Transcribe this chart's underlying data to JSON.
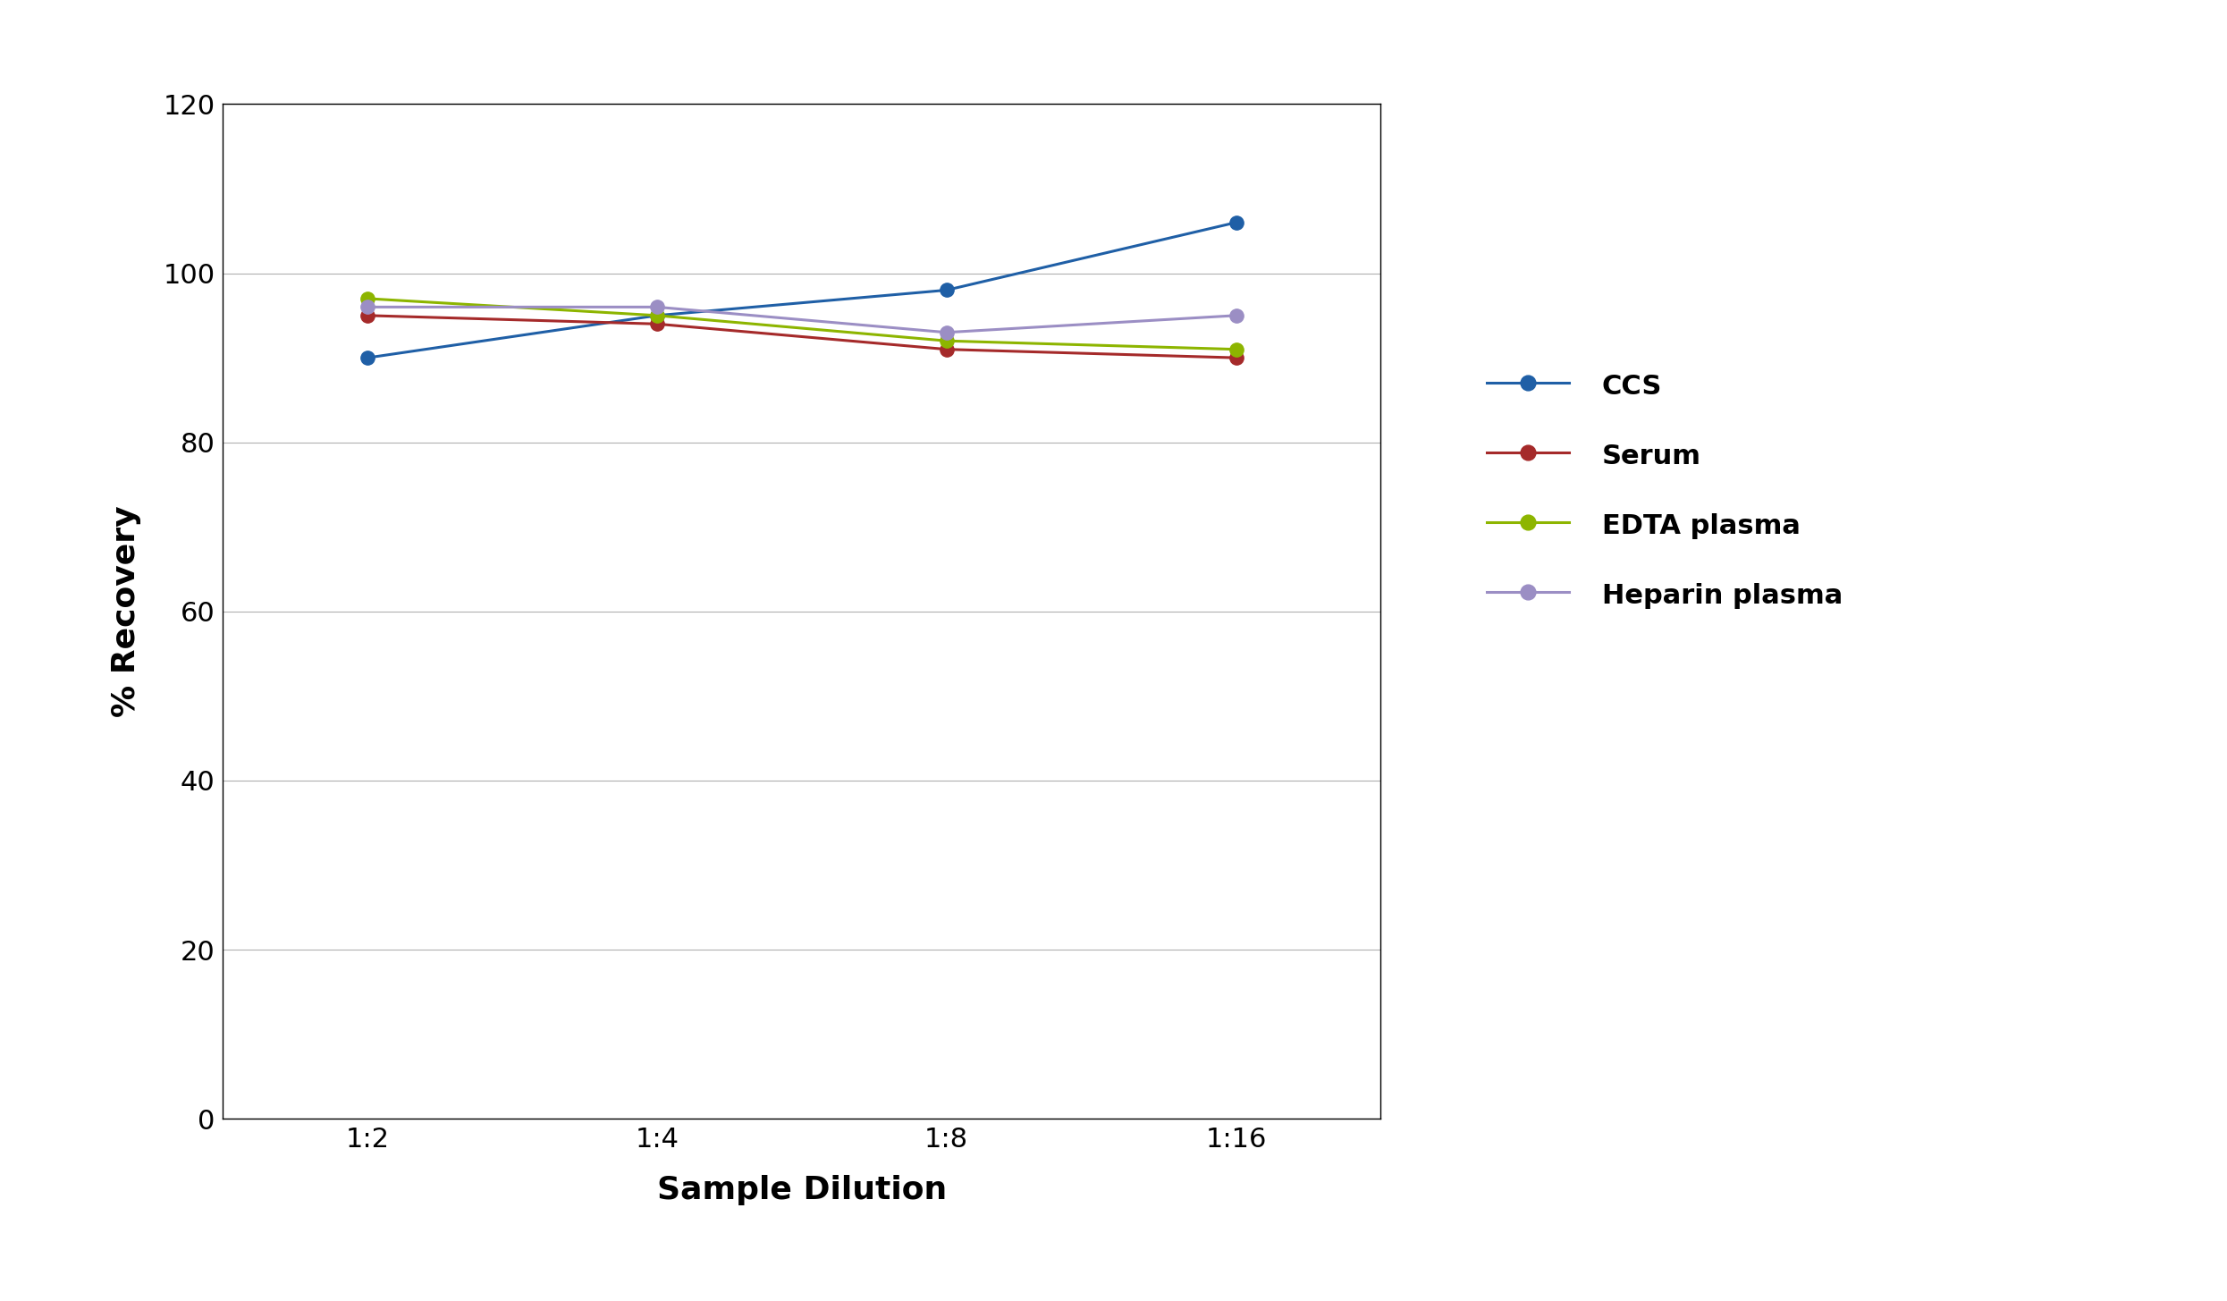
{
  "xlabel": "Sample Dilution",
  "ylabel": "% Recovery",
  "x_labels": [
    "1:2",
    "1:4",
    "1:8",
    "1:16"
  ],
  "x_values": [
    1,
    2,
    3,
    4
  ],
  "series": [
    {
      "name": "CCS",
      "color": "#1F5FA6",
      "values": [
        90,
        95,
        98,
        106
      ]
    },
    {
      "name": "Serum",
      "color": "#A52A2A",
      "values": [
        95,
        94,
        91,
        90
      ]
    },
    {
      "name": "EDTA plasma",
      "color": "#8DB500",
      "values": [
        97,
        95,
        92,
        91
      ]
    },
    {
      "name": "Heparin plasma",
      "color": "#9B8EC4",
      "values": [
        96,
        96,
        93,
        95
      ]
    }
  ],
  "ylim": [
    0,
    120
  ],
  "yticks": [
    0,
    20,
    40,
    60,
    80,
    100,
    120
  ],
  "background_color": "#ffffff",
  "grid_color": "#b0b0b0",
  "marker_size": 11,
  "line_width": 2.2,
  "label_fontsize": 26,
  "tick_fontsize": 22,
  "legend_fontsize": 22
}
